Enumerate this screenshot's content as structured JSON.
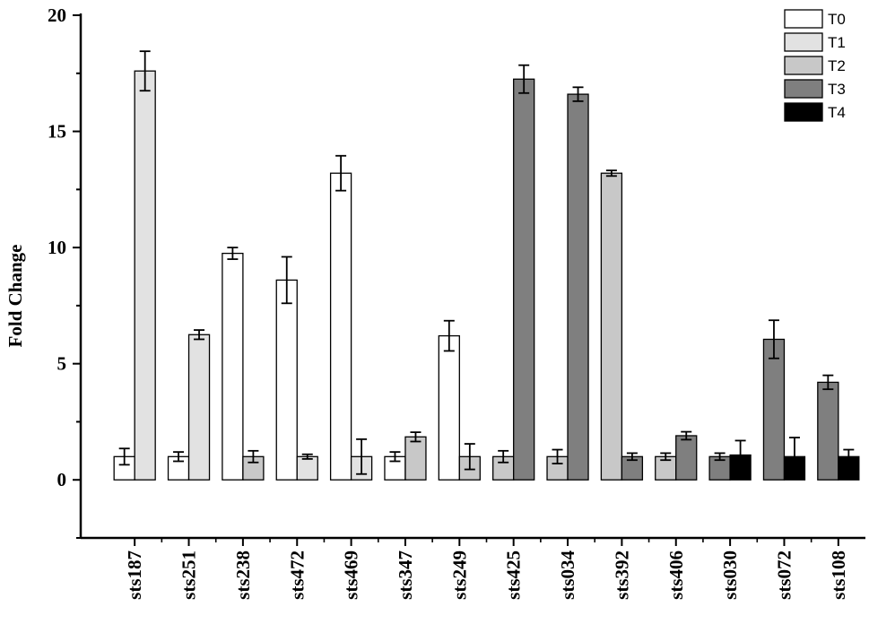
{
  "chart_data": {
    "type": "bar",
    "ylabel": "Fold Change",
    "xlabel": "",
    "ylim": [
      -2.5,
      20
    ],
    "yticks": [
      0,
      5,
      10,
      15,
      20
    ],
    "categories": [
      "sts187",
      "sts251",
      "sts238",
      "sts472",
      "sts469",
      "sts347",
      "sts249",
      "sts425",
      "sts034",
      "sts392",
      "sts406",
      "sts030",
      "sts072",
      "sts108"
    ],
    "legend": {
      "placement": "top-right",
      "entries": [
        {
          "name": "T0",
          "color": "#ffffff"
        },
        {
          "name": "T1",
          "color": "#e2e2e2"
        },
        {
          "name": "T2",
          "color": "#c8c8c8"
        },
        {
          "name": "T3",
          "color": "#7f7f7f"
        },
        {
          "name": "T4",
          "color": "#000000"
        }
      ]
    },
    "groups": [
      {
        "category": "sts187",
        "bars": [
          {
            "series": "T0",
            "value": 1.0,
            "error": 0.35
          },
          {
            "series": "T1",
            "value": 17.6,
            "error": 0.85
          }
        ]
      },
      {
        "category": "sts251",
        "bars": [
          {
            "series": "T0",
            "value": 1.0,
            "error": 0.2
          },
          {
            "series": "T1",
            "value": 6.25,
            "error": 0.2
          }
        ]
      },
      {
        "category": "sts238",
        "bars": [
          {
            "series": "T0",
            "value": 9.75,
            "error": 0.25
          },
          {
            "series": "T2",
            "value": 1.0,
            "error": 0.25
          }
        ]
      },
      {
        "category": "sts472",
        "bars": [
          {
            "series": "T0",
            "value": 8.6,
            "error": 1.0
          },
          {
            "series": "T1",
            "value": 1.0,
            "error": 0.1
          }
        ]
      },
      {
        "category": "sts469",
        "bars": [
          {
            "series": "T0",
            "value": 13.2,
            "error": 0.75
          },
          {
            "series": "T1",
            "value": 1.0,
            "error": 0.75
          }
        ]
      },
      {
        "category": "sts347",
        "bars": [
          {
            "series": "T0",
            "value": 1.0,
            "error": 0.2
          },
          {
            "series": "T2",
            "value": 1.85,
            "error": 0.2
          }
        ]
      },
      {
        "category": "sts249",
        "bars": [
          {
            "series": "T0",
            "value": 6.2,
            "error": 0.65
          },
          {
            "series": "T2",
            "value": 1.0,
            "error": 0.55
          }
        ]
      },
      {
        "category": "sts425",
        "bars": [
          {
            "series": "T2",
            "value": 1.0,
            "error": 0.25
          },
          {
            "series": "T3",
            "value": 17.25,
            "error": 0.6
          }
        ]
      },
      {
        "category": "sts034",
        "bars": [
          {
            "series": "T2",
            "value": 1.0,
            "error": 0.3
          },
          {
            "series": "T3",
            "value": 16.6,
            "error": 0.3
          }
        ]
      },
      {
        "category": "sts392",
        "bars": [
          {
            "series": "T2",
            "value": 13.2,
            "error": 0.12
          },
          {
            "series": "T3",
            "value": 1.0,
            "error": 0.15
          }
        ]
      },
      {
        "category": "sts406",
        "bars": [
          {
            "series": "T2",
            "value": 1.0,
            "error": 0.15
          },
          {
            "series": "T3",
            "value": 1.9,
            "error": 0.17
          }
        ]
      },
      {
        "category": "sts030",
        "bars": [
          {
            "series": "T3",
            "value": 1.0,
            "error": 0.15
          },
          {
            "series": "T4",
            "value": 1.07,
            "error": 0.62
          }
        ]
      },
      {
        "category": "sts072",
        "bars": [
          {
            "series": "T3",
            "value": 6.05,
            "error": 0.82
          },
          {
            "series": "T4",
            "value": 1.0,
            "error": 0.82
          }
        ]
      },
      {
        "category": "sts108",
        "bars": [
          {
            "series": "T3",
            "value": 4.2,
            "error": 0.3
          },
          {
            "series": "T4",
            "value": 1.0,
            "error": 0.3
          }
        ]
      }
    ]
  }
}
